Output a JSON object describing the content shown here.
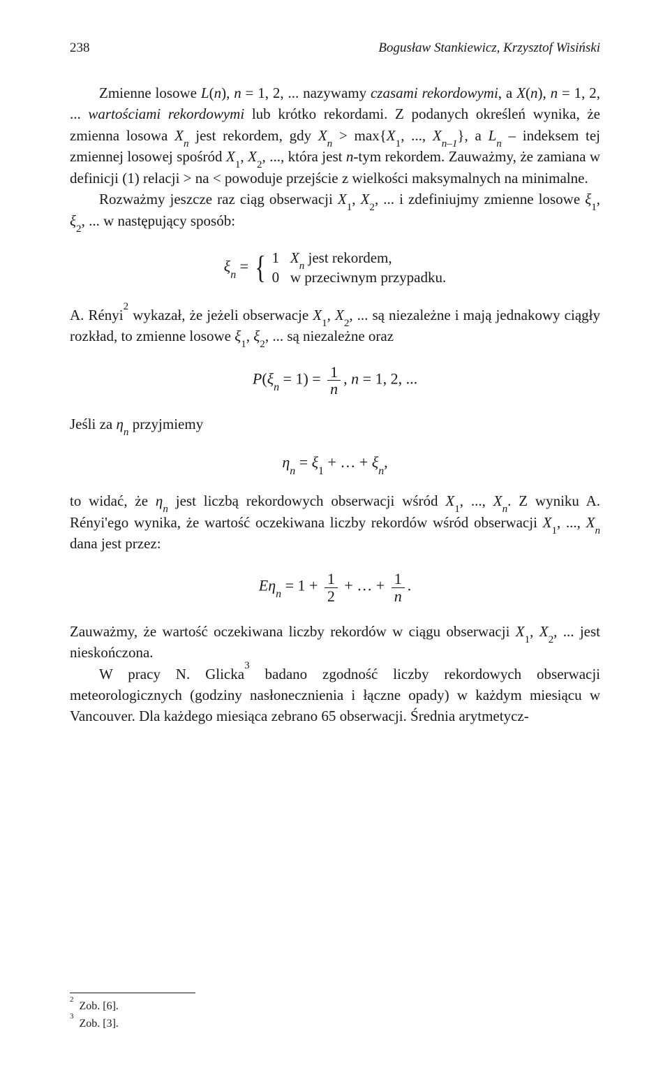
{
  "header": {
    "page_number": "238",
    "authors": "Bogusław Stankiewicz, Krzysztof Wisiński"
  },
  "p1": {
    "a": "Zmienne losowe ",
    "b": ", ",
    "c": " = 1, 2, ... nazywamy ",
    "d": "czasami rekordowymi",
    "e": ", a ",
    "f": ", ",
    "g": " = 1, 2, ... ",
    "h": "wartościami rekordowymi",
    "i": " lub krótko rekordami. Z podanych określeń wynika, że zmienna losowa ",
    "j": " jest rekordem, gdy ",
    "k": " > max{",
    "l": ", ..., ",
    "m": "}, a ",
    "n": " – indeksem tej zmiennej losowej spośród ",
    "o": ", ",
    "p": ", ..., która jest ",
    "q": "-tym rekordem. Zauważmy, że zamiana w definicji (1) relacji > na < powoduje przejście z wielkości maksymalnych na minimalne."
  },
  "p2": {
    "a": "Rozważmy jeszcze raz ciąg obserwacji ",
    "b": ", ",
    "c": ", ... i zdefiniujmy zmienne losowe ",
    "d": ", ",
    "e": ", ... w następujący sposób:"
  },
  "formula1": {
    "lhs_var": "ξ",
    "lhs_sub": "n",
    "eq": " = ",
    "case1_val": "1",
    "case1_txt": " jest rekordem,",
    "case2_val": "0",
    "case2_txt": "w przeciwnym przypadku."
  },
  "p3": {
    "a": "A. Rényi",
    "fn": "2",
    "b": " wykazał, że jeżeli obserwacje ",
    "c": ", ",
    "d": ", ... są niezależne i mają jednakowy ciągły rozkład, to zmienne losowe ",
    "e": ", ",
    "f": ", ...  są niezależne oraz"
  },
  "formula2": {
    "lhs": "P",
    "open": "(",
    "xi": "ξ",
    "sub": "n",
    "eq1": " = 1) = ",
    "num": "1",
    "den": "n",
    "comma": ",   ",
    "tail": " = 1, 2, ..."
  },
  "p4": {
    "a": "Jeśli za ",
    "b": " przyjmiemy"
  },
  "formula3": {
    "eta": "η",
    "sub": "n",
    "eq": " = ",
    "xi": "ξ",
    "one": "1",
    "plus": " + … + ",
    "xi2": "ξ",
    "subn": "n",
    "comma": ","
  },
  "p5": {
    "a": "to widać, że ",
    "b": " jest liczbą rekordowych obserwacji wśród ",
    "c": ", ..., ",
    "d": ". Z wyniku A. Rényi'ego wynika, że wartość oczekiwana liczby rekordów wśród obserwacji ",
    "e": ", ..., ",
    "f": " dana jest przez:"
  },
  "formula4": {
    "E": "E",
    "eta": "η",
    "sub": "n",
    "eq": " = 1 + ",
    "num1": "1",
    "den1": "2",
    "plus": " + … + ",
    "num2": "1",
    "den2": "n",
    "dot": "."
  },
  "p6": {
    "a": "Zauważmy, że wartość oczekiwana liczby rekordów w ciągu obserwacji ",
    "b": ", ",
    "c": ", ... jest nieskończona."
  },
  "p7": {
    "a": "W pracy N. Glicka",
    "fn": "3",
    "b": " badano zgodność liczby rekordowych obserwacji meteorologicznych (godziny nasłonecznienia i łączne opady) w każdym miesiącu w Vancouver. Dla każdego miesiąca zebrano 65 obserwacji. Średnia arytmetycz-"
  },
  "footnotes": {
    "f2": "Zob. [6].",
    "f3": "Zob. [3]."
  }
}
